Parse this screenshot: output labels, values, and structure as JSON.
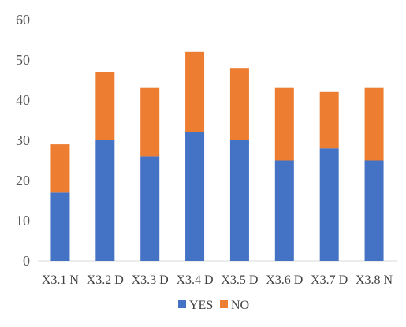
{
  "chart_data": {
    "type": "bar",
    "stacked": true,
    "categories": [
      "X3.1 N",
      "X3.2 D",
      "X3.3 D",
      "X3.4 D",
      "X3.5 D",
      "X3.6 D",
      "X3.7 D",
      "X3.8 N"
    ],
    "series": [
      {
        "name": "YES",
        "color": "#4472C4",
        "values": [
          17,
          30,
          26,
          32,
          30,
          25,
          28,
          25
        ]
      },
      {
        "name": "NO",
        "color": "#ED7D31",
        "values": [
          12,
          17,
          17,
          20,
          18,
          18,
          14,
          18
        ]
      }
    ],
    "ylim": [
      0,
      60
    ],
    "yticks": [
      0,
      10,
      20,
      30,
      40,
      50,
      60
    ],
    "grid": false,
    "legend_position": "bottom-center"
  }
}
